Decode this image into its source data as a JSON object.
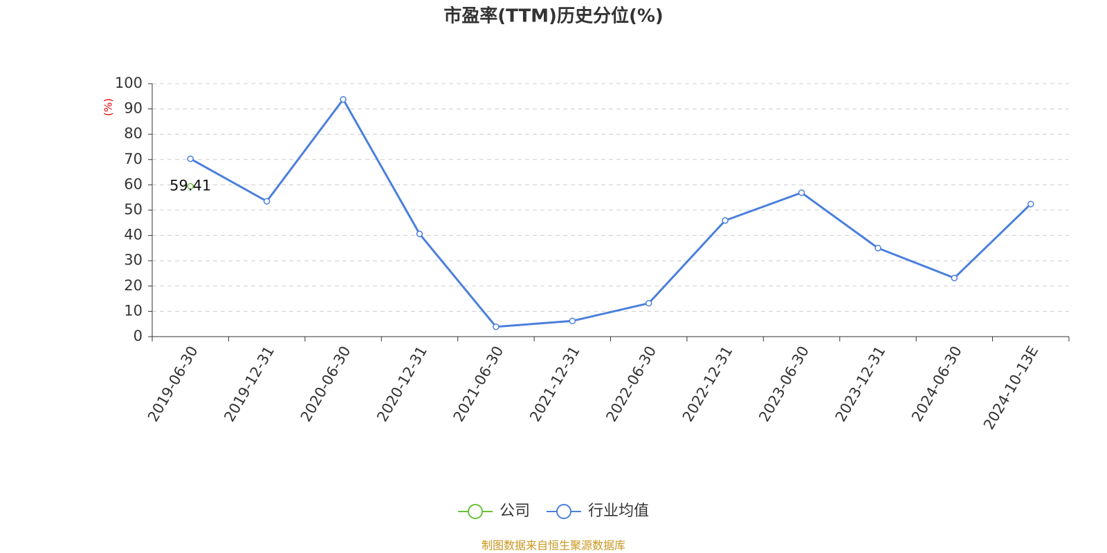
{
  "chart_data": {
    "type": "line",
    "title": "市盈率(TTM)历史分位(%)",
    "y_label": "(%)",
    "categories": [
      "2019-06-30",
      "2019-12-31",
      "2020-06-30",
      "2020-12-31",
      "2021-06-30",
      "2021-12-31",
      "2022-06-30",
      "2022-12-31",
      "2023-06-30",
      "2023-12-31",
      "2024-06-30",
      "2024-10-13E"
    ],
    "series": [
      {
        "name": "公司",
        "color": "#67c23a",
        "values": [
          59.41,
          null,
          null,
          null,
          null,
          null,
          null,
          null,
          null,
          null,
          null,
          null
        ]
      },
      {
        "name": "行业均值",
        "color": "#4a7fdc",
        "values": [
          70.3,
          53.5,
          93.8,
          40.6,
          3.9,
          6.2,
          13.2,
          45.9,
          56.9,
          35.0,
          23.2,
          52.4
        ]
      }
    ],
    "ylim": [
      0,
      100
    ],
    "yticks": [
      0,
      10,
      20,
      30,
      40,
      50,
      60,
      70,
      80,
      90,
      100
    ],
    "grid": true,
    "source": "制图数据来自恒生聚源数据库"
  }
}
